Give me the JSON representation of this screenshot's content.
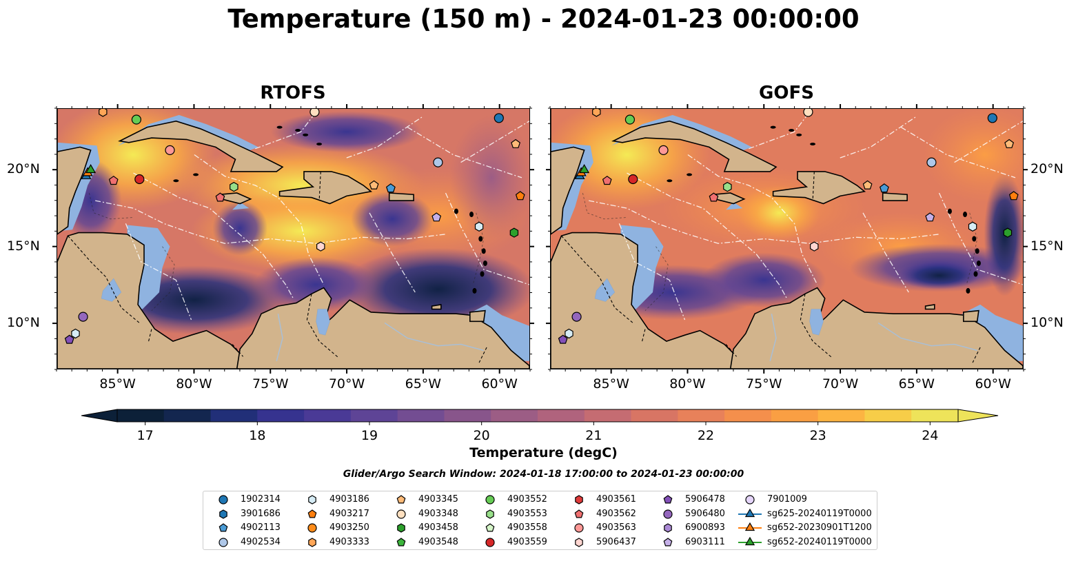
{
  "title": "Temperature (150 m) - 2024-01-23 00:00:00",
  "panels": [
    {
      "title": "RTOFS"
    },
    {
      "title": "GOFS"
    }
  ],
  "map_extent": {
    "lon": [
      -89,
      -58
    ],
    "lat": [
      7,
      24
    ]
  },
  "lon_ticks": [
    {
      "lon": -85,
      "label": "85°W"
    },
    {
      "lon": -80,
      "label": "80°W"
    },
    {
      "lon": -75,
      "label": "75°W"
    },
    {
      "lon": -70,
      "label": "70°W"
    },
    {
      "lon": -65,
      "label": "65°W"
    },
    {
      "lon": -60,
      "label": "60°W"
    }
  ],
  "lat_ticks": [
    {
      "lat": 20,
      "label": "20°N"
    },
    {
      "lat": 15,
      "label": "15°N"
    },
    {
      "lat": 10,
      "label": "10°N"
    }
  ],
  "colorbar": {
    "label": "Temperature (degC)",
    "min": 16.75,
    "max": 24.5,
    "ticks": [
      "17",
      "18",
      "19",
      "20",
      "21",
      "22",
      "23",
      "24"
    ],
    "colors": [
      "#0c2038",
      "#13264f",
      "#212f78",
      "#36338f",
      "#4a3a96",
      "#5e4496",
      "#734d92",
      "#88558b",
      "#9c5d85",
      "#b0637d",
      "#c56c72",
      "#d87564",
      "#e8815a",
      "#f48f4c",
      "#fa9f43",
      "#fcb442",
      "#f7cd48",
      "#eee35a"
    ]
  },
  "search_window": "Glider/Argo Search Window: 2024-01-18 17:00:00 to 2024-01-23 00:00:00",
  "legend": [
    {
      "label": "1902314",
      "color": "#1f77b4",
      "marker": "circle"
    },
    {
      "label": "3901686",
      "color": "#1f77b4",
      "marker": "hexagon"
    },
    {
      "label": "4902113",
      "color": "#4a9bd5",
      "marker": "pentagon"
    },
    {
      "label": "4902534",
      "color": "#aec7e8",
      "marker": "circle"
    },
    {
      "label": "4903186",
      "color": "#d6ecf5",
      "marker": "hexagon"
    },
    {
      "label": "4903217",
      "color": "#ff7f0e",
      "marker": "pentagon"
    },
    {
      "label": "4903250",
      "color": "#ff8c1a",
      "marker": "circle"
    },
    {
      "label": "4903333",
      "color": "#ffa657",
      "marker": "hexagon"
    },
    {
      "label": "4903345",
      "color": "#ffbb78",
      "marker": "pentagon"
    },
    {
      "label": "4903348",
      "color": "#ffe0c0",
      "marker": "circle"
    },
    {
      "label": "4903458",
      "color": "#2ca02c",
      "marker": "hexagon"
    },
    {
      "label": "4903548",
      "color": "#3cb53c",
      "marker": "pentagon"
    },
    {
      "label": "4903552",
      "color": "#66cc55",
      "marker": "circle"
    },
    {
      "label": "4903553",
      "color": "#98df8a",
      "marker": "hexagon"
    },
    {
      "label": "4903558",
      "color": "#d5f5c8",
      "marker": "pentagon"
    },
    {
      "label": "4903559",
      "color": "#d62728",
      "marker": "circle"
    },
    {
      "label": "4903561",
      "color": "#e03a3a",
      "marker": "hexagon"
    },
    {
      "label": "4903562",
      "color": "#f07070",
      "marker": "pentagon"
    },
    {
      "label": "4903563",
      "color": "#ff9896",
      "marker": "circle"
    },
    {
      "label": "5906437",
      "color": "#ffd5d0",
      "marker": "hexagon"
    },
    {
      "label": "5906478",
      "color": "#8350b8",
      "marker": "pentagon"
    },
    {
      "label": "5906480",
      "color": "#9467bd",
      "marker": "circle"
    },
    {
      "label": "6900893",
      "color": "#ab8ad6",
      "marker": "hexagon"
    },
    {
      "label": "6903111",
      "color": "#c5b0e8",
      "marker": "pentagon"
    },
    {
      "label": "7901009",
      "color": "#e5d5fa",
      "marker": "circle"
    },
    {
      "label": "sg625-20240119T0000",
      "color": "#1f77b4",
      "marker": "triangle"
    },
    {
      "label": "sg652-20230901T1200",
      "color": "#ff7f0e",
      "marker": "triangle"
    },
    {
      "label": "sg652-20240119T0000",
      "color": "#2ca02c",
      "marker": "triangle"
    }
  ],
  "observations": [
    {
      "id": "1902314",
      "lon": -60.0,
      "lat": 23.4
    },
    {
      "id": "4902534",
      "lon": -64.0,
      "lat": 20.5
    },
    {
      "id": "4903345",
      "lon": -58.9,
      "lat": 21.7
    },
    {
      "id": "4903217",
      "lon": -58.6,
      "lat": 18.3
    },
    {
      "id": "4903458",
      "lon": -59.0,
      "lat": 15.9
    },
    {
      "id": "6903111",
      "lon": -64.1,
      "lat": 16.9
    },
    {
      "id": "4903186",
      "lon": -61.3,
      "lat": 16.3
    },
    {
      "id": "4902113",
      "lon": -67.1,
      "lat": 18.8
    },
    {
      "id": "4903345",
      "lon": -68.2,
      "lat": 19.0
    },
    {
      "id": "4903553",
      "lon": -77.4,
      "lat": 18.9
    },
    {
      "id": "4903562",
      "lon": -78.3,
      "lat": 18.2
    },
    {
      "id": "5906437",
      "lon": -71.7,
      "lat": 15.0
    },
    {
      "id": "4903563",
      "lon": -81.6,
      "lat": 21.3
    },
    {
      "id": "4903559",
      "lon": -83.6,
      "lat": 19.4
    },
    {
      "id": "4903562",
      "lon": -85.3,
      "lat": 19.3
    },
    {
      "id": "4903552",
      "lon": -83.8,
      "lat": 23.3
    },
    {
      "id": "4903333",
      "lon": -86.0,
      "lat": 23.8
    },
    {
      "id": "4903348",
      "lon": -72.1,
      "lat": 23.8
    },
    {
      "id": "5906478",
      "lon": -88.2,
      "lat": 8.9
    },
    {
      "id": "4903186",
      "lon": -87.8,
      "lat": 9.3
    },
    {
      "id": "5906480",
      "lon": -87.3,
      "lat": 10.4
    },
    {
      "id": "sg625-20240119T0000",
      "lon": -87.1,
      "lat": 19.6
    },
    {
      "id": "sg652-20230901T1200",
      "lon": -87.0,
      "lat": 19.8
    },
    {
      "id": "sg652-20240119T0000",
      "lon": -86.8,
      "lat": 20.0
    }
  ]
}
